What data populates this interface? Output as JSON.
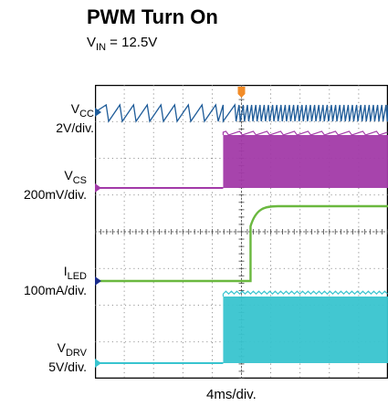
{
  "title": "PWM Turn On",
  "subtitle": {
    "prefix": "V",
    "sub": "IN",
    "suffix": " = 12.5V"
  },
  "colors": {
    "vcc": "#1f5c99",
    "vcs": "#a23aa8",
    "iled": "#6ab83f",
    "vdrv": "#38c4cf",
    "trigger": "#f28c28"
  },
  "chart_data": {
    "type": "line",
    "title": "PWM Turn On",
    "subtitle": "VIN = 12.5V",
    "xlabel": "4ms/div.",
    "grid": true,
    "x_divisions": 10,
    "y_divisions": 8,
    "x_unit": "ms",
    "x_range": [
      0,
      40
    ],
    "pwm_on_time_ms": 17.5,
    "channels": [
      {
        "name": "VCC",
        "sym": "V",
        "sub": "CC",
        "scale": "2V/div.",
        "marker": "1",
        "behavior": "sawtooth ripple, frequency increases after PWM turn on"
      },
      {
        "name": "VCS",
        "sym": "V",
        "sub": "CS",
        "scale": "200mV/div.",
        "marker": "3",
        "behavior": "flat, then dense switching bursts after PWM turn on"
      },
      {
        "name": "ILED",
        "sym": "I",
        "sub": "LED",
        "scale": "100mA/div.",
        "marker": "4",
        "behavior": "zero, then steps up by about 1 div at PWM turn on"
      },
      {
        "name": "VDRV",
        "sym": "V",
        "sub": "DRV",
        "scale": "5V/div.",
        "marker": "2",
        "behavior": "flat, then dense switching bursts after PWM turn on"
      }
    ],
    "trigger_marker": "T"
  }
}
